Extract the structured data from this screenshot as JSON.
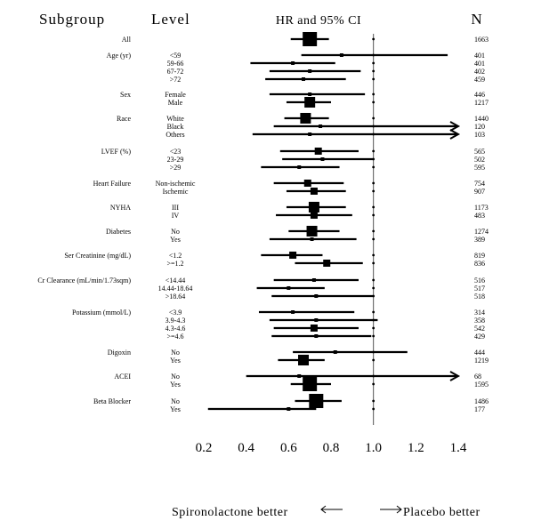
{
  "chart_data": {
    "type": "forest",
    "headers": {
      "subgroup": "Subgroup",
      "level": "Level",
      "effect": "HR and 95% CI",
      "n": "N"
    },
    "x_ticks": [
      "0.2",
      "0.4",
      "0.6",
      "0.8",
      "1.0",
      "1.2",
      "1.4"
    ],
    "xlim": [
      0.2,
      1.4
    ],
    "reference_line": 1.0,
    "footer_left": "Spironolactone better",
    "footer_right": "Placebo better",
    "rows": [
      {
        "subgroup": "All",
        "level": "",
        "n": "1663",
        "hr": 0.7,
        "lo": 0.61,
        "hi": 0.79,
        "box": "xl"
      },
      {
        "subgroup": "Age (yr)",
        "level": "<59",
        "n": "401",
        "hr": 0.85,
        "lo": 0.66,
        "hi": 1.35,
        "box": "s"
      },
      {
        "subgroup": "",
        "level": "59-66",
        "n": "401",
        "hr": 0.62,
        "lo": 0.42,
        "hi": 0.82,
        "box": "s"
      },
      {
        "subgroup": "",
        "level": "67-72",
        "n": "402",
        "hr": 0.7,
        "lo": 0.51,
        "hi": 0.94,
        "box": "s"
      },
      {
        "subgroup": "",
        "level": ">72",
        "n": "459",
        "hr": 0.67,
        "lo": 0.49,
        "hi": 0.87,
        "box": "s"
      },
      {
        "subgroup": "Sex",
        "level": "Female",
        "n": "446",
        "hr": 0.7,
        "lo": 0.51,
        "hi": 0.96,
        "box": "s"
      },
      {
        "subgroup": "",
        "level": "Male",
        "n": "1217",
        "hr": 0.7,
        "lo": 0.59,
        "hi": 0.8,
        "box": "l"
      },
      {
        "subgroup": "Race",
        "level": "White",
        "n": "1440",
        "hr": 0.68,
        "lo": 0.58,
        "hi": 0.79,
        "box": "l"
      },
      {
        "subgroup": "",
        "level": "Black",
        "n": "120",
        "hr": 0.75,
        "lo": 0.53,
        "hi": 1.4,
        "box": "s",
        "arrow": true
      },
      {
        "subgroup": "",
        "level": "Others",
        "n": "103",
        "hr": 0.7,
        "lo": 0.43,
        "hi": 1.4,
        "box": "s",
        "arrow": true
      },
      {
        "subgroup": "LVEF (%)",
        "level": "<23",
        "n": "565",
        "hr": 0.74,
        "lo": 0.56,
        "hi": 0.93,
        "box": "m"
      },
      {
        "subgroup": "",
        "level": "23-29",
        "n": "502",
        "hr": 0.76,
        "lo": 0.57,
        "hi": 1.0,
        "box": "s"
      },
      {
        "subgroup": "",
        "level": ">29",
        "n": "595",
        "hr": 0.65,
        "lo": 0.47,
        "hi": 0.84,
        "box": "s"
      },
      {
        "subgroup": "Heart Failure",
        "level": "Non-ischemic",
        "n": "754",
        "hr": 0.69,
        "lo": 0.53,
        "hi": 0.86,
        "box": "m"
      },
      {
        "subgroup": "",
        "level": "Ischemic",
        "n": "907",
        "hr": 0.72,
        "lo": 0.59,
        "hi": 0.87,
        "box": "m"
      },
      {
        "subgroup": "NYHA",
        "level": "III",
        "n": "1173",
        "hr": 0.72,
        "lo": 0.59,
        "hi": 0.87,
        "box": "l"
      },
      {
        "subgroup": "",
        "level": "IV",
        "n": "483",
        "hr": 0.72,
        "lo": 0.54,
        "hi": 0.9,
        "box": "m"
      },
      {
        "subgroup": "Diabetes",
        "level": "No",
        "n": "1274",
        "hr": 0.71,
        "lo": 0.6,
        "hi": 0.84,
        "box": "l"
      },
      {
        "subgroup": "",
        "level": "Yes",
        "n": "389",
        "hr": 0.71,
        "lo": 0.51,
        "hi": 0.92,
        "box": "s"
      },
      {
        "subgroup": "Ser Creatinine (mg/dL)",
        "level": "<1.2",
        "n": "819",
        "hr": 0.62,
        "lo": 0.47,
        "hi": 0.76,
        "box": "m"
      },
      {
        "subgroup": "",
        "level": ">=1.2",
        "n": "836",
        "hr": 0.78,
        "lo": 0.63,
        "hi": 0.95,
        "box": "m"
      },
      {
        "subgroup": "Cr Clearance (mL/min/1.73sqm)",
        "level": "<14.44",
        "n": "516",
        "hr": 0.72,
        "lo": 0.53,
        "hi": 0.93,
        "box": "s"
      },
      {
        "subgroup": "",
        "level": "14.44-18.64",
        "n": "517",
        "hr": 0.6,
        "lo": 0.45,
        "hi": 0.77,
        "box": "s"
      },
      {
        "subgroup": "",
        "level": ">18.64",
        "n": "518",
        "hr": 0.73,
        "lo": 0.52,
        "hi": 1.0,
        "box": "s"
      },
      {
        "subgroup": "Potassium (mmol/L)",
        "level": "<3.9",
        "n": "314",
        "hr": 0.62,
        "lo": 0.46,
        "hi": 0.91,
        "box": "s"
      },
      {
        "subgroup": "",
        "level": "3.9-4.3",
        "n": "358",
        "hr": 0.73,
        "lo": 0.51,
        "hi": 1.02,
        "box": "s"
      },
      {
        "subgroup": "",
        "level": "4.3-4.6",
        "n": "542",
        "hr": 0.72,
        "lo": 0.53,
        "hi": 0.93,
        "box": "m"
      },
      {
        "subgroup": "",
        "level": ">=4.6",
        "n": "429",
        "hr": 0.73,
        "lo": 0.52,
        "hi": 0.99,
        "box": "s"
      },
      {
        "subgroup": "Digoxin",
        "level": "No",
        "n": "444",
        "hr": 0.82,
        "lo": 0.62,
        "hi": 1.16,
        "box": "s"
      },
      {
        "subgroup": "",
        "level": "Yes",
        "n": "1219",
        "hr": 0.67,
        "lo": 0.55,
        "hi": 0.77,
        "box": "l"
      },
      {
        "subgroup": "ACEI",
        "level": "No",
        "n": "68",
        "hr": 0.65,
        "lo": 0.4,
        "hi": 1.4,
        "box": "s",
        "arrow": true
      },
      {
        "subgroup": "",
        "level": "Yes",
        "n": "1595",
        "hr": 0.7,
        "lo": 0.61,
        "hi": 0.8,
        "box": "xl"
      },
      {
        "subgroup": "Beta Blocker",
        "level": "No",
        "n": "1486",
        "hr": 0.73,
        "lo": 0.63,
        "hi": 0.85,
        "box": "xl"
      },
      {
        "subgroup": "",
        "level": "Yes",
        "n": "177",
        "hr": 0.6,
        "lo": 0.22,
        "hi": 0.73,
        "box": "s"
      }
    ]
  }
}
